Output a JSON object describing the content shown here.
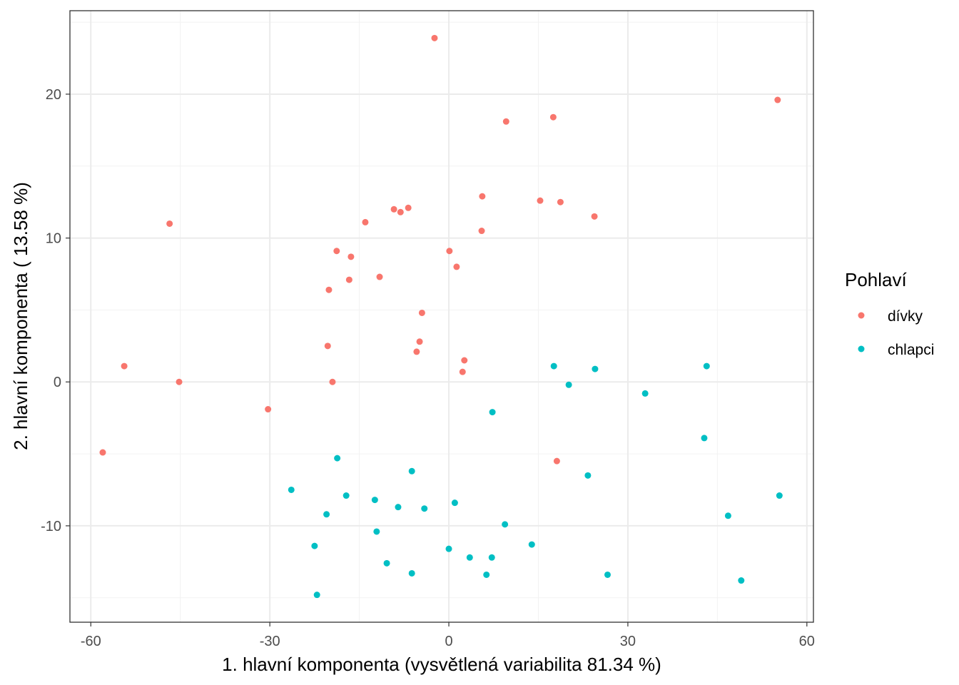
{
  "chart_data": {
    "type": "scatter",
    "xlabel": "1. hlavní komponenta (vysvětlená variabilita 81.34 %)",
    "ylabel": "2. hlavní komponenta ( 13.58 %)",
    "xlim": [
      -63.5,
      61.1
    ],
    "ylim": [
      -16.7,
      25.8
    ],
    "x_ticks": [
      -60,
      -30,
      0,
      30,
      60
    ],
    "x_tick_labels": [
      "-60",
      "-30",
      "0",
      "30",
      "60"
    ],
    "y_ticks": [
      -10,
      0,
      10,
      20
    ],
    "y_tick_labels": [
      "-10",
      "0",
      "10",
      "20"
    ],
    "grid": true,
    "legend": {
      "title": "Pohlaví",
      "position": "right"
    },
    "series": [
      {
        "name": "dívky",
        "color": "#F8766D",
        "points": [
          [
            -2.4,
            23.9
          ],
          [
            55.1,
            19.6
          ],
          [
            9.6,
            18.1
          ],
          [
            17.5,
            18.4
          ],
          [
            5.6,
            12.9
          ],
          [
            15.3,
            12.6
          ],
          [
            18.7,
            12.5
          ],
          [
            24.4,
            11.5
          ],
          [
            -46.8,
            11.0
          ],
          [
            -14.0,
            11.1
          ],
          [
            -9.2,
            12.0
          ],
          [
            -8.1,
            11.8
          ],
          [
            -6.8,
            12.1
          ],
          [
            5.5,
            10.5
          ],
          [
            0.1,
            9.1
          ],
          [
            -18.8,
            9.1
          ],
          [
            -16.4,
            8.7
          ],
          [
            1.3,
            8.0
          ],
          [
            -16.7,
            7.1
          ],
          [
            -11.6,
            7.3
          ],
          [
            -20.1,
            6.4
          ],
          [
            -4.5,
            4.8
          ],
          [
            -4.9,
            2.8
          ],
          [
            -5.4,
            2.1
          ],
          [
            -20.3,
            2.5
          ],
          [
            2.6,
            1.5
          ],
          [
            2.3,
            0.7
          ],
          [
            -54.4,
            1.1
          ],
          [
            -45.2,
            0.0
          ],
          [
            -19.5,
            0.0
          ],
          [
            -30.3,
            -1.9
          ],
          [
            -58.0,
            -4.9
          ],
          [
            18.1,
            -5.5
          ]
        ]
      },
      {
        "name": "chlapci",
        "color": "#00BFC4",
        "points": [
          [
            17.6,
            1.1
          ],
          [
            24.5,
            0.9
          ],
          [
            43.2,
            1.1
          ],
          [
            20.1,
            -0.2
          ],
          [
            32.9,
            -0.8
          ],
          [
            7.3,
            -2.1
          ],
          [
            42.8,
            -3.9
          ],
          [
            -18.7,
            -5.3
          ],
          [
            -6.2,
            -6.2
          ],
          [
            23.3,
            -6.5
          ],
          [
            55.4,
            -7.9
          ],
          [
            -26.4,
            -7.5
          ],
          [
            -17.2,
            -7.9
          ],
          [
            -12.4,
            -8.2
          ],
          [
            -8.5,
            -8.7
          ],
          [
            -4.1,
            -8.8
          ],
          [
            1.0,
            -8.4
          ],
          [
            -20.5,
            -9.2
          ],
          [
            46.8,
            -9.3
          ],
          [
            9.4,
            -9.9
          ],
          [
            -12.1,
            -10.4
          ],
          [
            -22.5,
            -11.4
          ],
          [
            0.0,
            -11.6
          ],
          [
            13.9,
            -11.3
          ],
          [
            3.5,
            -12.2
          ],
          [
            7.2,
            -12.2
          ],
          [
            -10.4,
            -12.6
          ],
          [
            -6.2,
            -13.3
          ],
          [
            6.3,
            -13.4
          ],
          [
            26.6,
            -13.4
          ],
          [
            -22.1,
            -14.8
          ],
          [
            49.0,
            -13.8
          ]
        ]
      }
    ]
  }
}
